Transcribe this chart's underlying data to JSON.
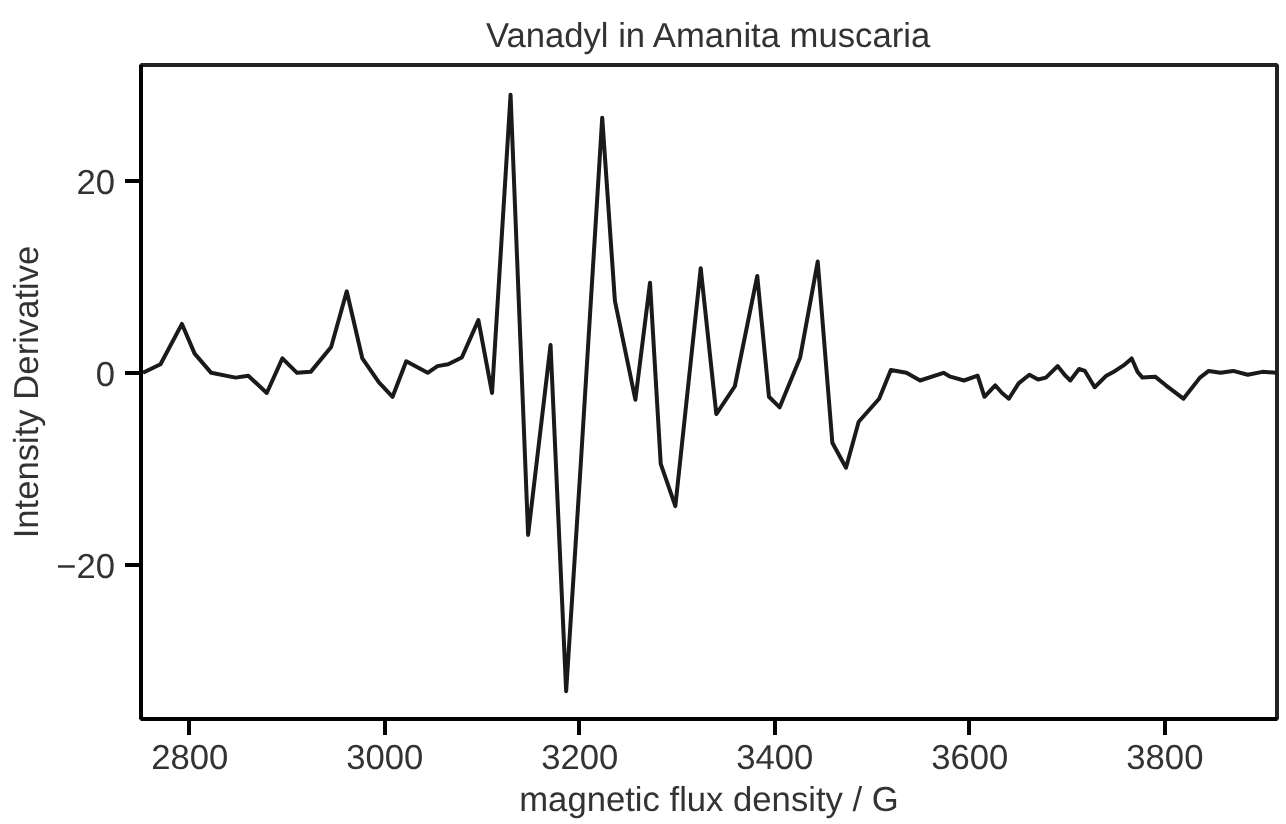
{
  "chart_data": {
    "type": "line",
    "title": "Vanadyl in Amanita muscaria",
    "xlabel": "magnetic flux density / G",
    "ylabel": "Intensity Derivative",
    "x": [
      2752,
      2770,
      2792,
      2805,
      2822,
      2847,
      2860,
      2879,
      2895,
      2910,
      2924,
      2945,
      2961,
      2977,
      2994,
      3008,
      3022,
      3044,
      3054,
      3065,
      3079,
      3096,
      3110,
      3129,
      3147,
      3170,
      3186,
      3201,
      3223,
      3236,
      3257,
      3272,
      3283,
      3298,
      3324,
      3340,
      3359,
      3382,
      3394,
      3405,
      3426,
      3444,
      3459,
      3473,
      3486,
      3507,
      3519,
      3535,
      3549,
      3573,
      3580,
      3594,
      3608,
      3615,
      3626,
      3633,
      3640,
      3650,
      3661,
      3670,
      3678,
      3690,
      3698,
      3703,
      3712,
      3718,
      3728,
      3740,
      3749,
      3758,
      3766,
      3772,
      3777,
      3790,
      3801,
      3819,
      3836,
      3845,
      3857,
      3870,
      3885,
      3900,
      3915
    ],
    "series": [
      {
        "color": "#1a1a1a",
        "values": [
          0.1,
          1.0,
          5.2,
          2.1,
          0.1,
          -0.4,
          -0.2,
          -2.0,
          1.6,
          0.1,
          0.2,
          2.8,
          8.6,
          1.6,
          -0.9,
          -2.4,
          1.3,
          0.1,
          0.8,
          1.0,
          1.7,
          5.6,
          -2.0,
          29.1,
          -16.8,
          3.0,
          -33.1,
          -9.4,
          26.7,
          7.6,
          -2.7,
          9.5,
          -9.4,
          -13.8,
          11.0,
          -4.2,
          -1.3,
          10.2,
          -2.4,
          -3.5,
          1.7,
          11.7,
          -7.2,
          -9.8,
          -5.0,
          -2.6,
          0.4,
          0.1,
          -0.7,
          0.1,
          -0.3,
          -0.7,
          -0.2,
          -2.4,
          -1.2,
          -2.0,
          -2.6,
          -1.0,
          -0.1,
          -0.6,
          -0.4,
          0.8,
          -0.2,
          -0.7,
          0.5,
          0.3,
          -1.4,
          -0.2,
          0.3,
          0.9,
          1.6,
          0.2,
          -0.4,
          -0.3,
          -1.2,
          -2.6,
          -0.4,
          0.3,
          0.1,
          0.3,
          -0.1,
          0.2,
          0.1
        ]
      }
    ],
    "xlim": [
      2750,
      3915
    ],
    "ylim": [
      -36,
      32.2
    ],
    "xticks": [
      2800,
      3000,
      3200,
      3400,
      3600,
      3800
    ],
    "yticks": [
      {
        "value": -20,
        "label": "−20"
      },
      0,
      20
    ],
    "grid": false,
    "marker": "none",
    "line_style": "solid"
  }
}
